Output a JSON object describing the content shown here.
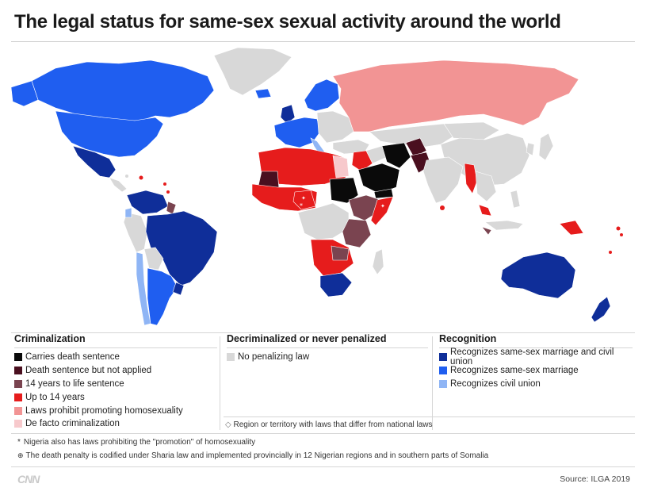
{
  "title": "The legal status for same-sex sexual activity around the world",
  "colors": {
    "death": "#0a0a0a",
    "death_not_applied": "#4a0f1f",
    "life": "#7a4450",
    "up_to_14": "#e61c1c",
    "promotion": "#f29494",
    "de_facto": "#f7c9cc",
    "no_penalty": "#d8d8d8",
    "marriage_union": "#0f2e99",
    "marriage": "#1f5ef0",
    "civil_union": "#8fb5f5",
    "ocean": "#ffffff"
  },
  "legend": {
    "criminalization": {
      "title": "Criminalization",
      "items": [
        {
          "label": "Carries death sentence",
          "color": "#0a0a0a"
        },
        {
          "label": "Death sentence but not applied",
          "color": "#4a0f1f"
        },
        {
          "label": "14 years to life sentence",
          "color": "#7a4450"
        },
        {
          "label": "Up to 14 years",
          "color": "#e61c1c"
        },
        {
          "label": "Laws prohibit promoting homosexuality",
          "color": "#f29494"
        },
        {
          "label": "De facto criminalization",
          "color": "#f7c9cc"
        }
      ]
    },
    "decriminalized": {
      "title": "Decriminalized or never penalized",
      "items": [
        {
          "label": "No penalizing law",
          "color": "#d8d8d8"
        }
      ],
      "subnational_note": "Region or territory with laws that differ from national laws"
    },
    "recognition": {
      "title": "Recognition",
      "items": [
        {
          "label": "Recognizes same-sex marriage and civil union",
          "color": "#0f2e99"
        },
        {
          "label": "Recognizes same-sex marriage",
          "color": "#1f5ef0"
        },
        {
          "label": "Recognizes civil union",
          "color": "#8fb5f5"
        }
      ]
    }
  },
  "footnotes": {
    "asterisk": "Nigeria also has laws prohibiting the \"promotion\" of homosexuality",
    "cross": "The death penalty is codified under Sharia law and implemented provincially in 12 Nigerian regions and in southern parts of Somalia"
  },
  "brand": "CNN",
  "source": "Source: ILGA 2019"
}
